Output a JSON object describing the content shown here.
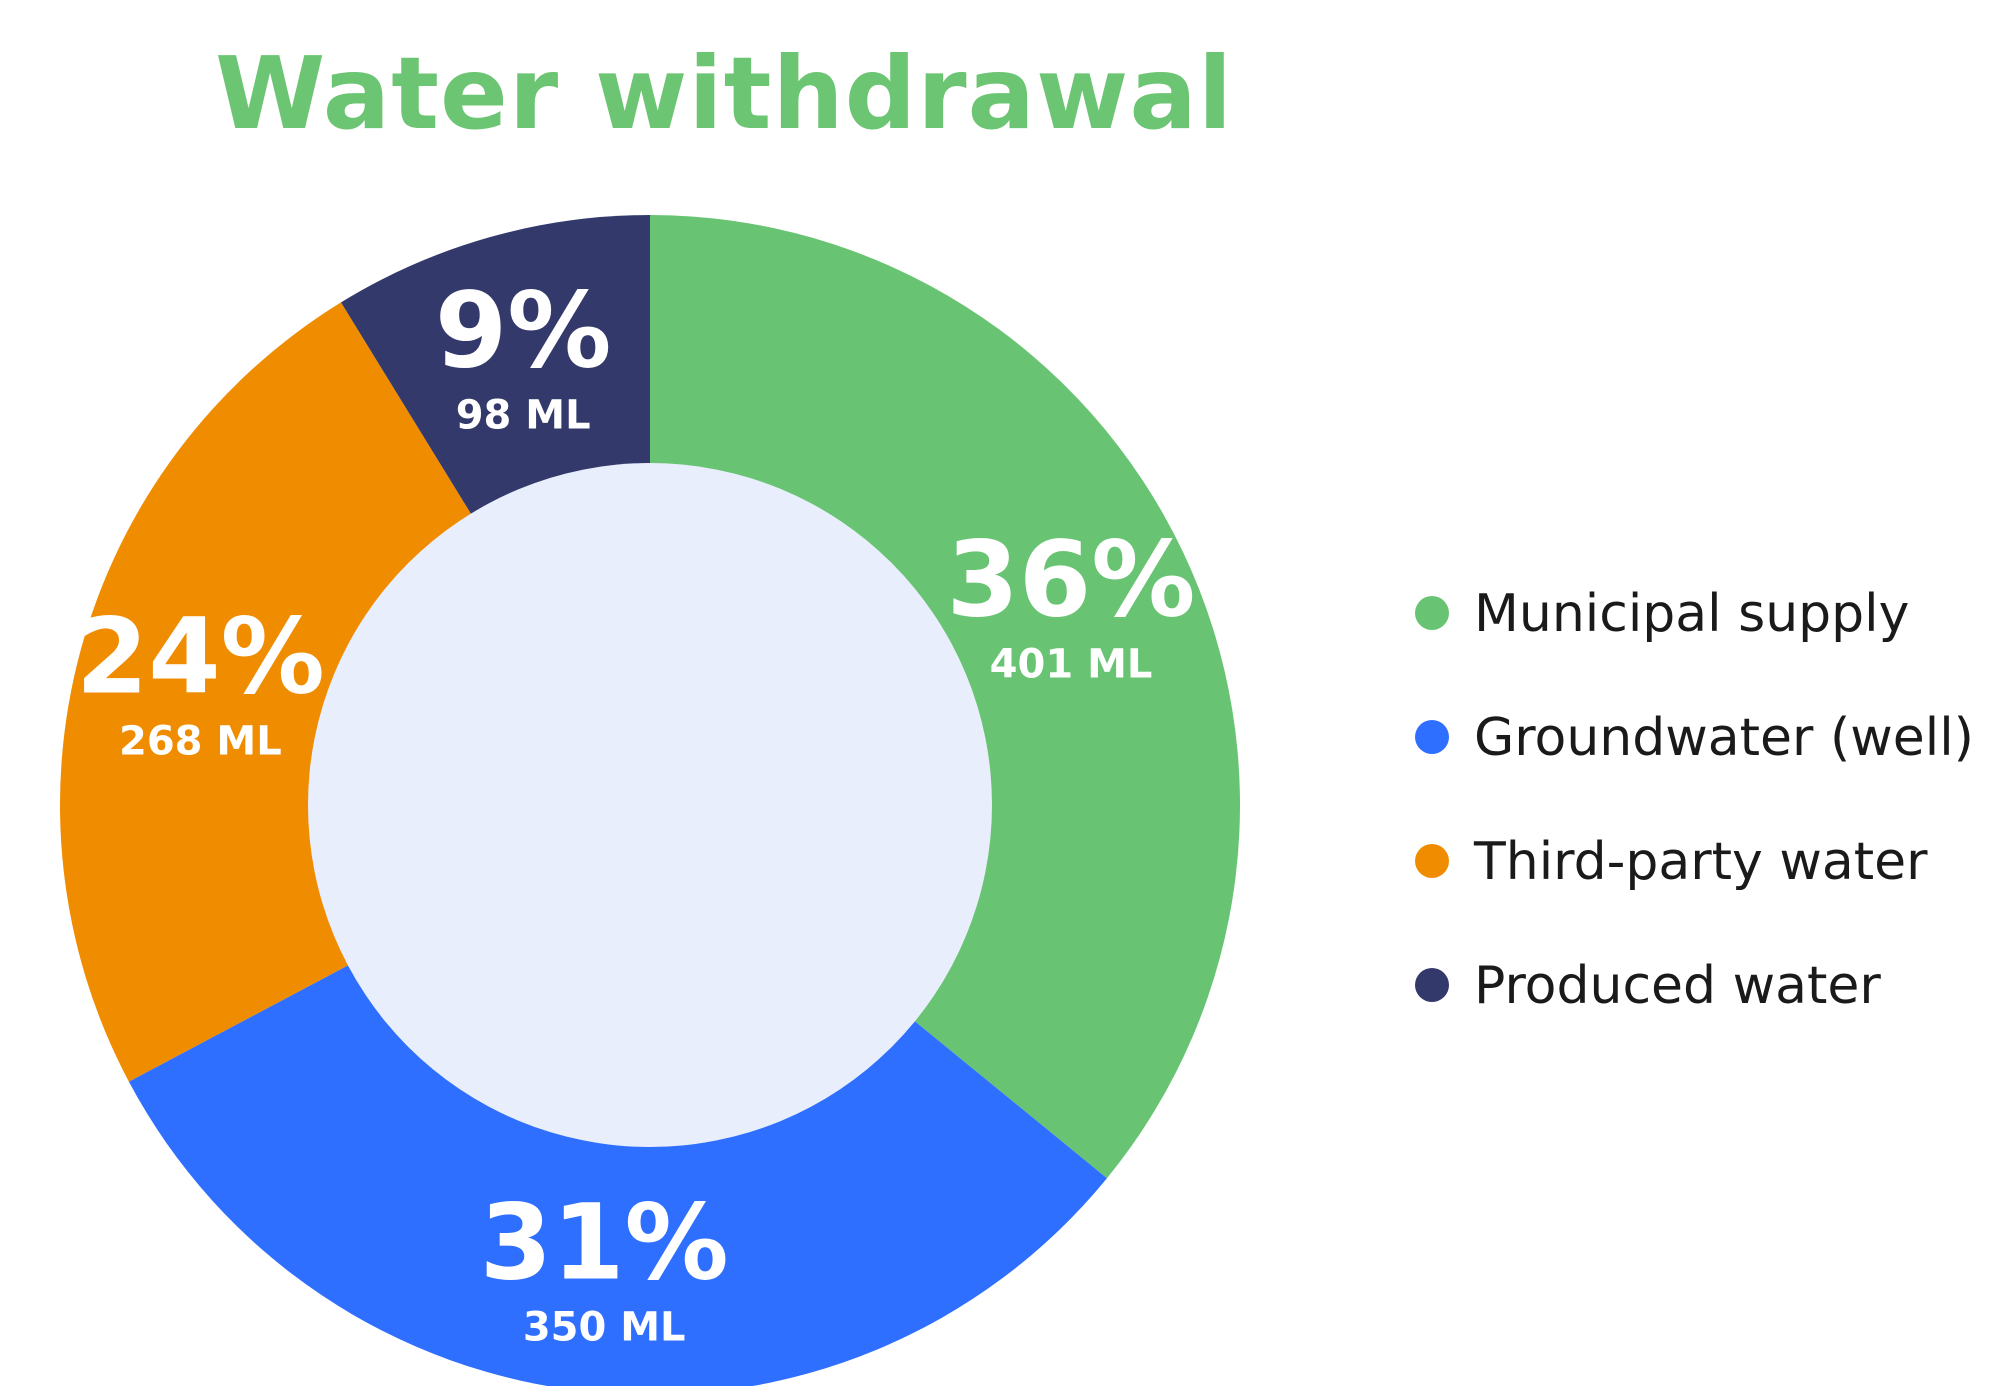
{
  "chart_data": {
    "type": "pie",
    "title": "Water withdrawal",
    "unit": "ML",
    "legend_position": "right",
    "categories": [
      "Municipal supply",
      "Groundwater (well)",
      "Third-party water",
      "Produced water"
    ],
    "values": [
      401,
      350,
      268,
      98
    ],
    "percent_labels": [
      "36%",
      "31%",
      "24%",
      "9%"
    ],
    "value_labels": [
      "401 ML",
      "350 ML",
      "268 ML",
      "98 ML"
    ],
    "colors": [
      "#68c472",
      "#2f6fff",
      "#f08c00",
      "#333a6b"
    ],
    "center_color": "#e8eefc"
  }
}
